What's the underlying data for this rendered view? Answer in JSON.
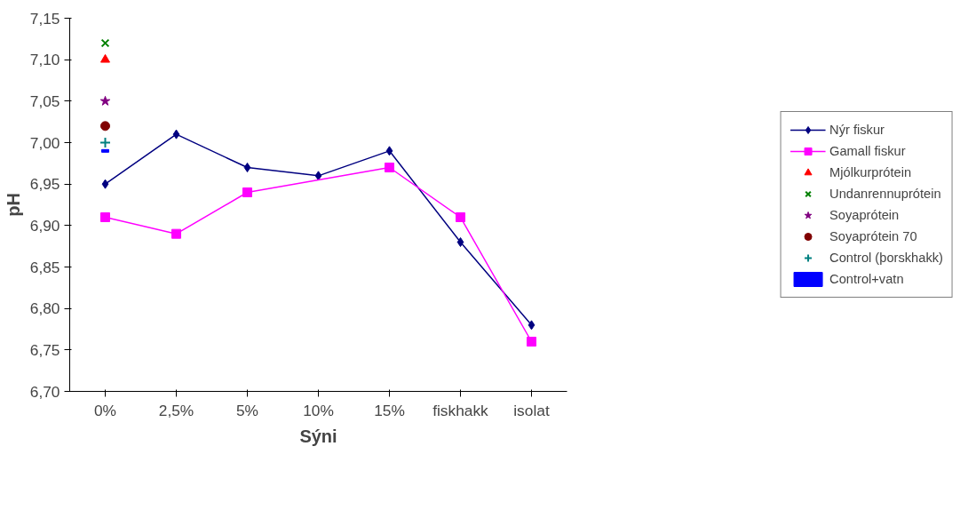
{
  "chart_data": {
    "type": "line",
    "xlabel": "Sýni",
    "ylabel": "pH",
    "categories": [
      "0%",
      "2,5%",
      "5%",
      "10%",
      "15%",
      "fiskhakk",
      "isolat"
    ],
    "ylim": [
      6.7,
      7.15
    ],
    "yticks": [
      {
        "value": 6.7,
        "label": "6,70"
      },
      {
        "value": 6.75,
        "label": "6,75"
      },
      {
        "value": 6.8,
        "label": "6,80"
      },
      {
        "value": 6.85,
        "label": "6,85"
      },
      {
        "value": 6.9,
        "label": "6,90"
      },
      {
        "value": 6.95,
        "label": "6,95"
      },
      {
        "value": 7.0,
        "label": "7,00"
      },
      {
        "value": 7.05,
        "label": "7,05"
      },
      {
        "value": 7.1,
        "label": "7,10"
      },
      {
        "value": 7.15,
        "label": "7,15"
      }
    ],
    "grid": false,
    "legend": "right",
    "series": [
      {
        "name": "Nýr fiskur",
        "marker": "diamond",
        "color": "#000080",
        "values": [
          6.95,
          7.01,
          6.97,
          6.96,
          6.99,
          6.88,
          6.78
        ]
      },
      {
        "name": "Gamall fiskur",
        "marker": "square",
        "color": "#ff00ff",
        "values": [
          6.91,
          6.89,
          6.94,
          null,
          6.97,
          6.91,
          6.76
        ]
      },
      {
        "name": "Mjólkurprótein",
        "type": "scatter",
        "marker": "triangle",
        "color": "#ff0000",
        "values": [
          7.1,
          null,
          null,
          null,
          null,
          null,
          null
        ]
      },
      {
        "name": "Undanrennuprótein",
        "type": "scatter",
        "marker": "x",
        "color": "#008000",
        "values": [
          7.12,
          null,
          null,
          null,
          null,
          null,
          null
        ]
      },
      {
        "name": "Soyaprótein",
        "type": "scatter",
        "marker": "star",
        "color": "#800080",
        "values": [
          7.05,
          null,
          null,
          null,
          null,
          null,
          null
        ]
      },
      {
        "name": "Soyaprótein 70",
        "type": "scatter",
        "marker": "circle",
        "color": "#800000",
        "values": [
          7.02,
          null,
          null,
          null,
          null,
          null,
          null
        ]
      },
      {
        "name": "Control (þorskhakk)",
        "type": "scatter",
        "marker": "cross",
        "color": "#008080",
        "values": [
          7.0,
          null,
          null,
          null,
          null,
          null,
          null
        ]
      },
      {
        "name": "Control+vatn",
        "type": "scatter",
        "color": "#0000ff",
        "values": [
          6.99,
          null,
          null,
          null,
          null,
          null,
          null
        ]
      }
    ]
  }
}
